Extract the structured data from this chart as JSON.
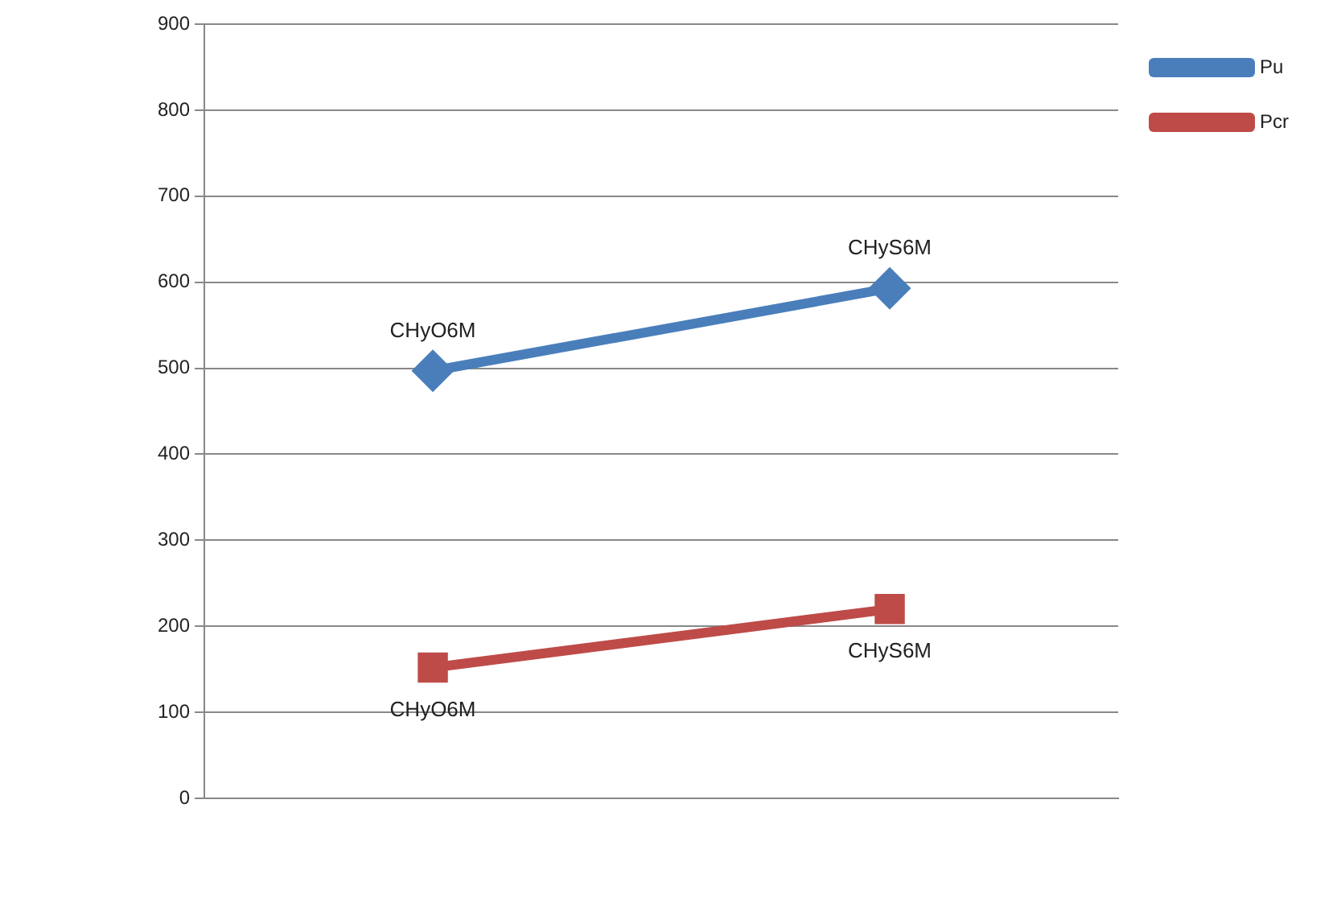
{
  "chart_data": {
    "type": "line",
    "categories": [
      null,
      null
    ],
    "series": [
      {
        "name": "Pu",
        "color": "#4a7ebb",
        "marker": "diamond",
        "values": [
          497,
          593
        ],
        "value_labels": [
          "CHyO6M",
          "CHyS6M"
        ]
      },
      {
        "name": "Pcr",
        "color": "#be4b48",
        "marker": "square",
        "values": [
          152,
          220
        ],
        "value_labels": [
          "CHyO6M",
          "CHyS6M"
        ]
      }
    ],
    "ylim": [
      0,
      900
    ],
    "yticks": [
      0,
      100,
      200,
      300,
      400,
      500,
      600,
      700,
      800,
      900
    ],
    "grid": "y",
    "legend": "top right",
    "tick_labels": "y"
  }
}
